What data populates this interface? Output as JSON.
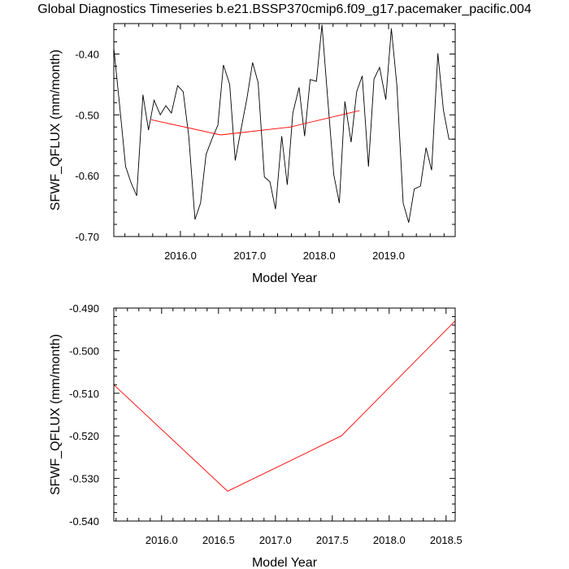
{
  "figure": {
    "title": "Global Diagnostics Timeseries b.e21.BSSP370cmip6.f09_g17.pacemaker_pacific.004"
  },
  "chart_data": [
    {
      "type": "line",
      "title": "",
      "xlabel": "Model Year",
      "ylabel": "SFWF_QFLUX (mm/month)",
      "xlim": [
        2015.04,
        2019.96
      ],
      "ylim": [
        -0.7,
        -0.35
      ],
      "xticks": [
        2016.0,
        2017.0,
        2018.0,
        2019.0
      ],
      "xtick_labels": [
        "2016.0",
        "2017.0",
        "2018.0",
        "2019.0"
      ],
      "yticks": [
        -0.7,
        -0.6,
        -0.5,
        -0.4
      ],
      "ytick_labels": [
        "-0.70",
        "-0.60",
        "-0.50",
        "-0.40"
      ],
      "grid": false,
      "series": [
        {
          "color": "#000000",
          "x": [
            2015.04,
            2015.12,
            2015.21,
            2015.29,
            2015.37,
            2015.46,
            2015.54,
            2015.62,
            2015.71,
            2015.79,
            2015.87,
            2015.96,
            2016.04,
            2016.12,
            2016.21,
            2016.29,
            2016.37,
            2016.46,
            2016.54,
            2016.62,
            2016.71,
            2016.79,
            2016.87,
            2016.96,
            2017.04,
            2017.12,
            2017.21,
            2017.29,
            2017.37,
            2017.46,
            2017.54,
            2017.62,
            2017.71,
            2017.79,
            2017.87,
            2017.96,
            2018.04,
            2018.12,
            2018.21,
            2018.29,
            2018.37,
            2018.46,
            2018.54,
            2018.62,
            2018.71,
            2018.79,
            2018.87,
            2018.96,
            2019.04,
            2019.12,
            2019.21,
            2019.29,
            2019.37,
            2019.46,
            2019.54,
            2019.62,
            2019.71,
            2019.79,
            2019.87,
            2019.96
          ],
          "y": [
            -0.39,
            -0.48,
            -0.585,
            -0.612,
            -0.633,
            -0.467,
            -0.525,
            -0.476,
            -0.5,
            -0.485,
            -0.497,
            -0.452,
            -0.462,
            -0.535,
            -0.672,
            -0.645,
            -0.565,
            -0.538,
            -0.517,
            -0.418,
            -0.45,
            -0.575,
            -0.526,
            -0.472,
            -0.414,
            -0.447,
            -0.602,
            -0.61,
            -0.655,
            -0.535,
            -0.615,
            -0.497,
            -0.455,
            -0.535,
            -0.442,
            -0.445,
            -0.352,
            -0.47,
            -0.598,
            -0.645,
            -0.478,
            -0.545,
            -0.462,
            -0.436,
            -0.585,
            -0.441,
            -0.422,
            -0.475,
            -0.358,
            -0.452,
            -0.645,
            -0.677,
            -0.622,
            -0.617,
            -0.554,
            -0.591,
            -0.399,
            -0.492,
            -0.54,
            -0.54
          ]
        },
        {
          "color": "#ff0000",
          "x": [
            2015.58,
            2016.58,
            2017.58,
            2018.58
          ],
          "y": [
            -0.508,
            -0.533,
            -0.52,
            -0.493
          ]
        }
      ]
    },
    {
      "type": "line",
      "title": "",
      "xlabel": "Model Year",
      "ylabel": "SFWF_QFLUX (mm/month)",
      "xlim": [
        2015.58,
        2018.58
      ],
      "ylim": [
        -0.54,
        -0.49
      ],
      "xticks": [
        2016.0,
        2016.5,
        2017.0,
        2017.5,
        2018.0,
        2018.5
      ],
      "xtick_labels": [
        "2016.0",
        "2016.5",
        "2017.0",
        "2017.5",
        "2018.0",
        "2018.5"
      ],
      "yticks": [
        -0.54,
        -0.53,
        -0.52,
        -0.51,
        -0.5,
        -0.49
      ],
      "ytick_labels": [
        "-0.540",
        "-0.530",
        "-0.520",
        "-0.510",
        "-0.500",
        "-0.490"
      ],
      "grid": false,
      "series": [
        {
          "color": "#ff0000",
          "x": [
            2015.58,
            2016.58,
            2017.58,
            2018.58
          ],
          "y": [
            -0.508,
            -0.533,
            -0.52,
            -0.493
          ]
        }
      ]
    }
  ]
}
